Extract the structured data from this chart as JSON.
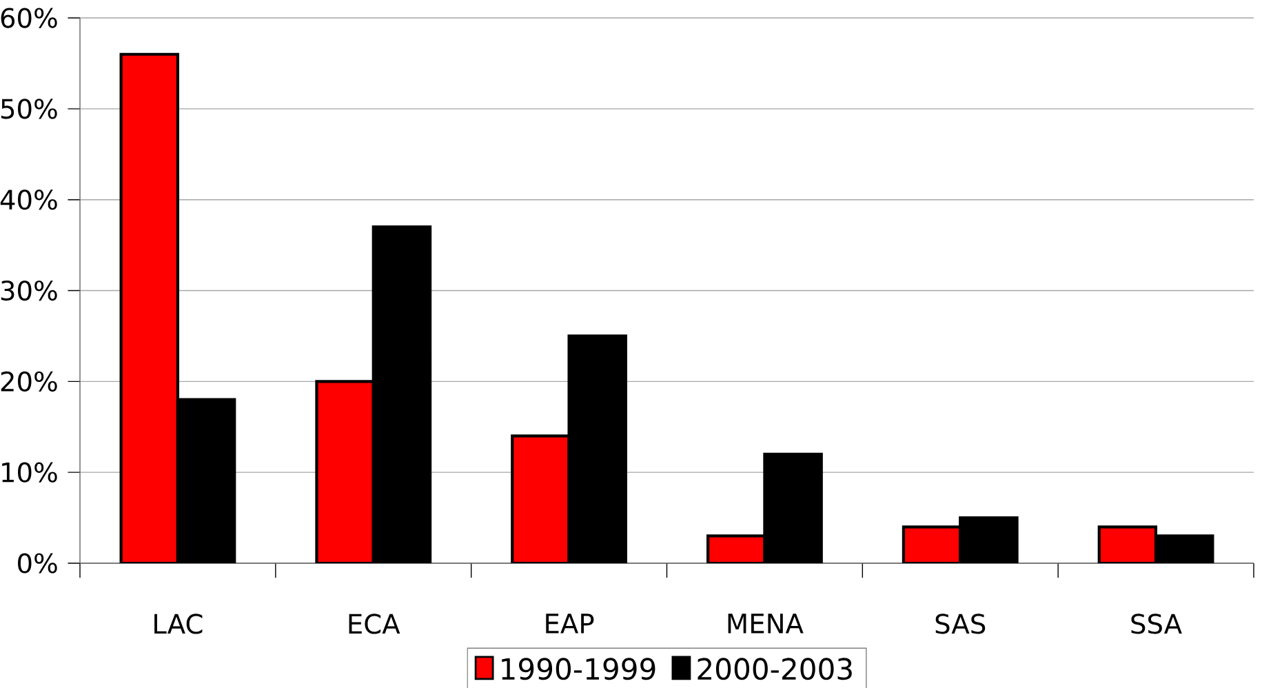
{
  "chart_data": {
    "type": "bar",
    "categories": [
      "LAC",
      "ECA",
      "EAP",
      "MENA",
      "SAS",
      "SSA"
    ],
    "series": [
      {
        "name": "1990-1999",
        "color": "#ff0000",
        "values": [
          56,
          20,
          14,
          3,
          4,
          4
        ]
      },
      {
        "name": "2000-2003",
        "color": "#000000",
        "values": [
          18,
          37,
          25,
          12,
          5,
          3
        ]
      }
    ],
    "ylim": [
      0,
      60
    ],
    "yticks": [
      {
        "value": 0,
        "label": "0%"
      },
      {
        "value": 10,
        "label": "10%"
      },
      {
        "value": 20,
        "label": "20%"
      },
      {
        "value": 30,
        "label": "30%"
      },
      {
        "value": 40,
        "label": "40%"
      },
      {
        "value": 50,
        "label": "50%"
      },
      {
        "value": 60,
        "label": "60%"
      }
    ],
    "grid": "y",
    "legend": "bottom"
  }
}
